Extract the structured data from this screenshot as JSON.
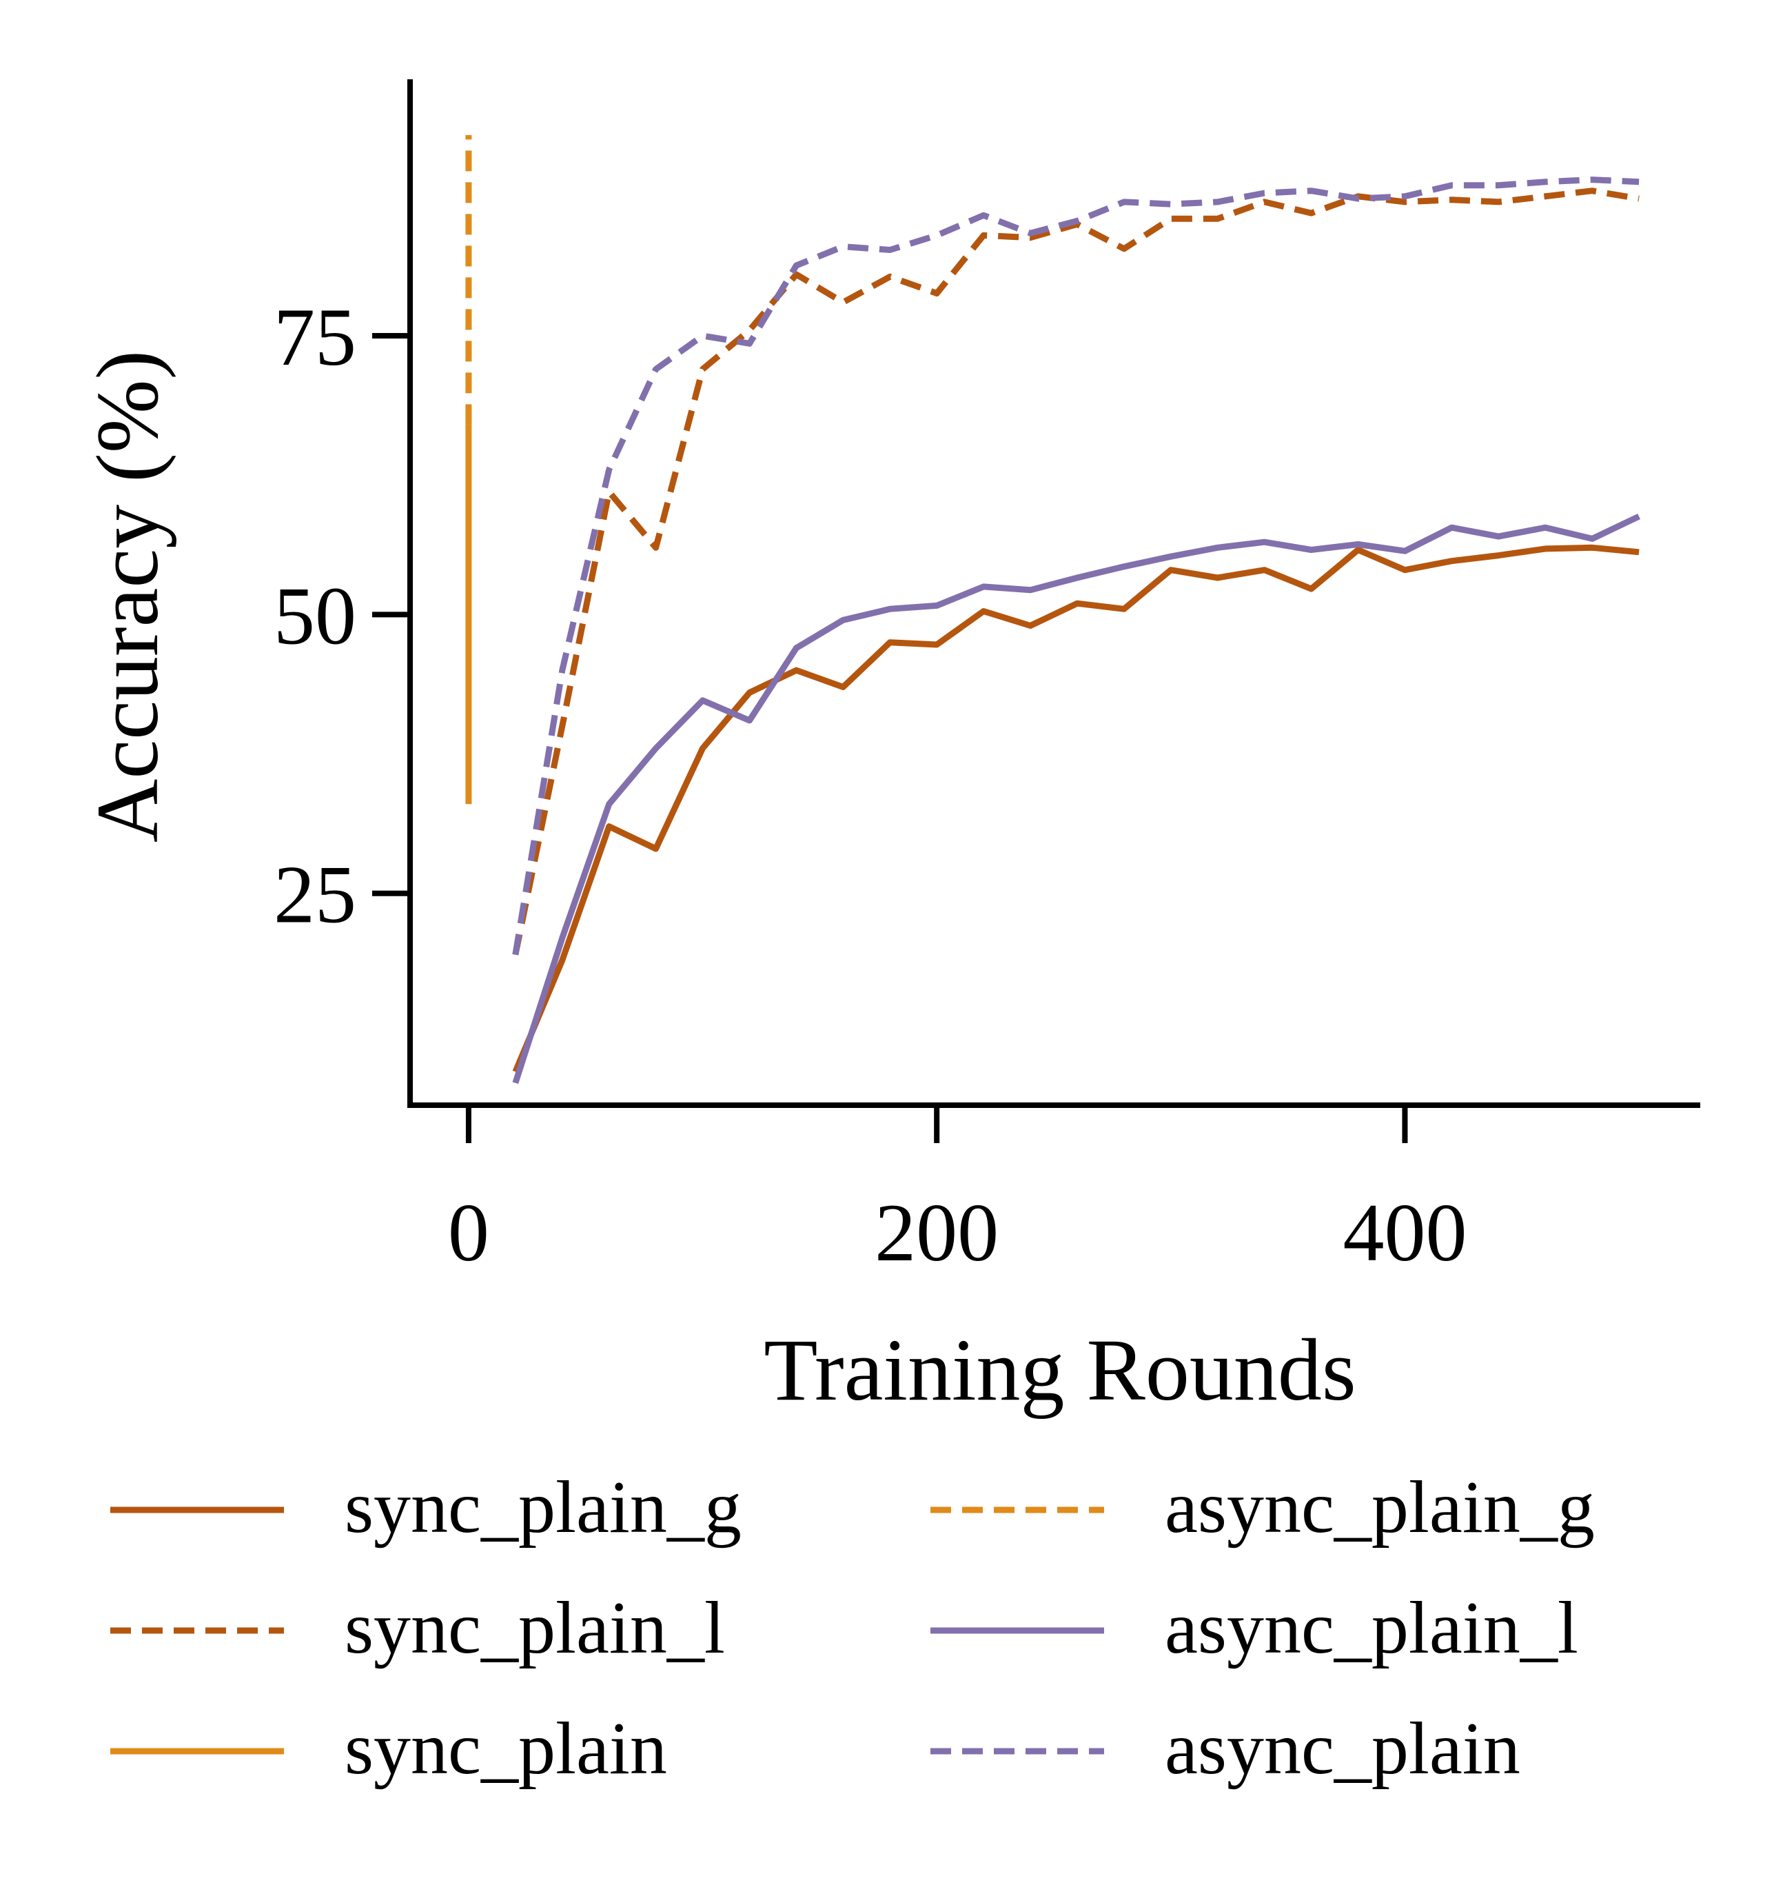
{
  "chart_data": {
    "type": "line",
    "xlabel": "Training Rounds",
    "ylabel": "Accuracy (%)",
    "xlim": [
      -25,
      525
    ],
    "ylim": [
      6,
      98
    ],
    "xticks": [
      0,
      200,
      400
    ],
    "yticks": [
      25,
      50,
      75
    ],
    "xtick_labels": [
      "0",
      "200",
      "400"
    ],
    "ytick_labels": [
      "25",
      "50",
      "75"
    ],
    "grid": false,
    "legend_position": "bottom",
    "legend_columns": 2,
    "series": [
      {
        "name": "sync_plain_g",
        "color": "#B5560F",
        "style": "solid",
        "x": [
          20,
          40,
          60,
          80,
          100,
          120,
          140,
          160,
          180,
          200,
          220,
          240,
          260,
          280,
          300,
          320,
          340,
          360,
          380,
          400,
          420,
          440,
          460,
          480,
          500
        ],
        "y": [
          9,
          19,
          31,
          29,
          38,
          43,
          45,
          43.5,
          47.5,
          47.3,
          50.3,
          49,
          51,
          50.5,
          54,
          53.3,
          54,
          52.3,
          55.8,
          54,
          54.8,
          55.3,
          55.9,
          56,
          55.6
        ]
      },
      {
        "name": "sync_plain_l",
        "color": "#B5560F",
        "style": "dashed",
        "x": [
          20,
          40,
          60,
          80,
          100,
          120,
          140,
          160,
          180,
          200,
          220,
          240,
          260,
          280,
          300,
          320,
          340,
          360,
          380,
          400,
          420,
          440,
          460,
          480,
          500
        ],
        "y": [
          19.5,
          40,
          61,
          56,
          72,
          75.5,
          80.5,
          78,
          80.3,
          78.8,
          84,
          83.8,
          85,
          82.8,
          85.5,
          85.5,
          87,
          86,
          87.5,
          87,
          87.2,
          87,
          87.5,
          88,
          87.3
        ]
      },
      {
        "name": "sync_plain",
        "color": "#E08A1A",
        "style": "solid",
        "x": [
          0,
          0
        ],
        "y": [
          33,
          67
        ]
      },
      {
        "name": "async_plain_g",
        "color": "#E08A1A",
        "style": "dashed",
        "x": [
          0,
          0
        ],
        "y": [
          67,
          93
        ]
      },
      {
        "name": "async_plain_l",
        "color": "#8270AD",
        "style": "solid",
        "x": [
          20,
          40,
          60,
          80,
          100,
          120,
          140,
          160,
          180,
          200,
          220,
          240,
          260,
          280,
          300,
          320,
          340,
          360,
          380,
          400,
          420,
          440,
          460,
          480,
          500
        ],
        "y": [
          8,
          21,
          33,
          38,
          42.3,
          40.5,
          47,
          49.5,
          50.5,
          50.8,
          52.5,
          52.2,
          53.3,
          54.3,
          55.2,
          56,
          56.5,
          55.8,
          56.3,
          55.7,
          57.8,
          57,
          57.8,
          56.8,
          58.8
        ]
      },
      {
        "name": "async_plain",
        "color": "#8270AD",
        "style": "dashed",
        "x": [
          20,
          40,
          60,
          80,
          100,
          120,
          140,
          160,
          180,
          200,
          220,
          240,
          260,
          280,
          300,
          320,
          340,
          360,
          380,
          400,
          420,
          440,
          460,
          480,
          500
        ],
        "y": [
          19.5,
          45,
          63,
          72,
          75,
          74.3,
          81.3,
          83,
          82.7,
          84,
          85.8,
          84.2,
          85.3,
          87,
          86.8,
          87,
          87.8,
          88,
          87.3,
          87.5,
          88.5,
          88.5,
          88.8,
          89,
          88.8
        ]
      }
    ]
  }
}
